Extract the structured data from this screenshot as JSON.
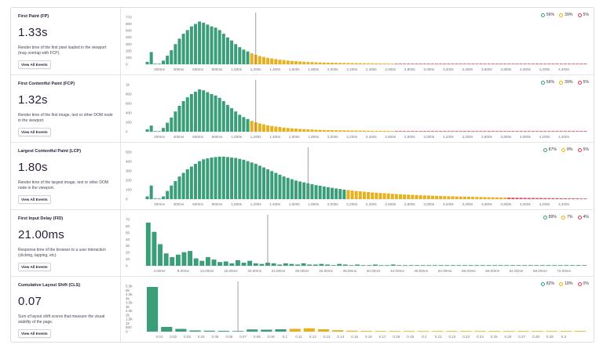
{
  "colors": {
    "good": "#3a9e79",
    "meh": "#e6b11c",
    "poor": "#dc4d5f",
    "marker": "#8b8592"
  },
  "metrics": [
    {
      "id": "fp",
      "title": "First Paint (FP)",
      "value": "1.33s",
      "description": "Render time of the first pixel loaded in the viewport (may overlap with FCP).",
      "button": "View All Events",
      "legend": {
        "good": "56%",
        "meh": "39%",
        "poor": "5%"
      },
      "chart_data": {
        "type": "bar",
        "y_ticks": [
          "0",
          "100",
          "200",
          "300",
          "400",
          "500",
          "600",
          "770"
        ],
        "x_ticks": [
          "200ms",
          "400ms",
          "600ms",
          "800ms",
          "1,000s",
          "1,200s",
          "1,400s",
          "1,600s",
          "1,800s",
          "2,000s",
          "2,200s",
          "2,400s",
          "2,600s",
          "2,800s",
          "3,000s",
          "3,200s",
          "3,400s",
          "3,600s",
          "3,800s",
          "4,000s",
          "4,200s",
          "4,400s"
        ],
        "ylim": [
          0,
          770
        ],
        "values": [
          40,
          200,
          10,
          5,
          60,
          140,
          230,
          330,
          420,
          500,
          560,
          620,
          660,
          700,
          680,
          650,
          620,
          600,
          560,
          500,
          440,
          390,
          330,
          280,
          240,
          210,
          180,
          155,
          135,
          120,
          105,
          95,
          85,
          75,
          68,
          60,
          55,
          50,
          45,
          42,
          38,
          35,
          32,
          30,
          28,
          27,
          25,
          24,
          23,
          22,
          21,
          20,
          19,
          18,
          17,
          16,
          15,
          14,
          13,
          13,
          12,
          11,
          10,
          10,
          9,
          9,
          8,
          8,
          8,
          7,
          7,
          7,
          6,
          6,
          6,
          5,
          5,
          5,
          5,
          4,
          4,
          4,
          4,
          4,
          3,
          3,
          3,
          3,
          3,
          3,
          2,
          2,
          2,
          2,
          2,
          2,
          2,
          2,
          2,
          2,
          2,
          2,
          2,
          2,
          1,
          1,
          1,
          1,
          1,
          1
        ],
        "thresholds": [
          26,
          62
        ],
        "marker_index": 27.5
      }
    },
    {
      "id": "fcp",
      "title": "First Contentful Paint (FCP)",
      "value": "1.32s",
      "description": "Render time of the first image, text or other DOM node in the viewport.",
      "button": "View All Events",
      "legend": {
        "good": "56%",
        "meh": "39%",
        "poor": "5%"
      },
      "chart_data": {
        "type": "bar",
        "y_ticks": [
          "0",
          "200",
          "400",
          "600",
          "800",
          "1k"
        ],
        "x_ticks": [
          "200ms",
          "400ms",
          "600ms",
          "800ms",
          "1,000s",
          "1,200s",
          "1,400s",
          "1,600s",
          "1,800s",
          "2,000s",
          "2,200s",
          "2,400s",
          "2,600s",
          "2,800s",
          "3,000s",
          "3,200s",
          "3,400s",
          "3,600s",
          "3,800s",
          "4,000s",
          "4,200s",
          "4,400s"
        ],
        "ylim": [
          0,
          1000
        ],
        "values": [
          50,
          130,
          10,
          5,
          80,
          190,
          300,
          430,
          550,
          650,
          730,
          800,
          850,
          900,
          880,
          840,
          800,
          770,
          720,
          650,
          570,
          500,
          430,
          360,
          310,
          270,
          230,
          200,
          175,
          155,
          135,
          122,
          110,
          98,
          88,
          78,
          71,
          65,
          58,
          54,
          49,
          45,
          41,
          39,
          36,
          34,
          32,
          31,
          29,
          28,
          27,
          26,
          24,
          23,
          22,
          21,
          19,
          18,
          17,
          17,
          16,
          14,
          13,
          13,
          12,
          12,
          10,
          10,
          10,
          9,
          9,
          9,
          8,
          8,
          8,
          6,
          6,
          6,
          6,
          5,
          5,
          5,
          5,
          5,
          4,
          4,
          4,
          4,
          4,
          4,
          3,
          3,
          3,
          3,
          3,
          3,
          3,
          3,
          3,
          3,
          3,
          3,
          3,
          3,
          2,
          2,
          2,
          2,
          2,
          2
        ],
        "thresholds": [
          26,
          62
        ],
        "marker_index": 27.5
      }
    },
    {
      "id": "lcp",
      "title": "Largest Contentful Paint (LCP)",
      "value": "1.80s",
      "description": "Render time of the largest image, text or other DOM node in the viewport.",
      "button": "View All Events",
      "legend": {
        "good": "87%",
        "meh": "8%",
        "poor": "5%"
      },
      "chart_data": {
        "type": "bar",
        "y_ticks": [
          "0",
          "100",
          "200",
          "300",
          "400",
          "500"
        ],
        "x_ticks": [
          "200ms",
          "400ms",
          "600ms",
          "800ms",
          "1,000s",
          "1,200s",
          "1,400s",
          "1,600s",
          "1,800s",
          "2,000s",
          "2,200s",
          "2,400s",
          "2,600s",
          "2,800s",
          "3,000s",
          "3,200s",
          "3,400s",
          "3,600s",
          "3,800s",
          "4,000s",
          "4,200s",
          "4,400s"
        ],
        "ylim": [
          0,
          520
        ],
        "values": [
          30,
          150,
          5,
          3,
          30,
          90,
          150,
          200,
          250,
          290,
          330,
          360,
          390,
          420,
          440,
          450,
          460,
          465,
          470,
          470,
          465,
          460,
          455,
          445,
          435,
          420,
          405,
          390,
          370,
          350,
          330,
          310,
          290,
          270,
          250,
          235,
          220,
          205,
          195,
          185,
          175,
          165,
          155,
          148,
          140,
          132,
          125,
          118,
          112,
          105,
          100,
          95,
          90,
          86,
          82,
          78,
          74,
          71,
          68,
          65,
          62,
          59,
          56,
          53,
          51,
          49,
          47,
          45,
          43,
          41,
          40,
          38,
          36,
          35,
          33,
          32,
          31,
          29,
          28,
          27,
          26,
          25,
          24,
          23,
          22,
          21,
          20,
          19,
          18,
          18,
          17,
          16,
          15,
          15,
          14,
          13,
          13,
          12,
          12,
          11,
          11,
          10,
          10,
          9,
          9,
          8,
          8,
          8,
          7,
          7
        ],
        "thresholds": [
          50,
          90
        ],
        "marker_index": 40.5
      }
    },
    {
      "id": "fid",
      "title": "First Input Delay (FID)",
      "value": "21.00ms",
      "description": "Response time of the browser to a user interaction (clicking, tapping, etc).",
      "button": "View All Events",
      "legend": {
        "good": "89%",
        "meh": "7%",
        "poor": "4%"
      },
      "chart_data": {
        "type": "bar",
        "y_ticks": [
          "0",
          "10",
          "20",
          "30",
          "40",
          "50",
          "60",
          "70"
        ],
        "x_ticks": [
          "4.00ms",
          "8.00ms",
          "12.00ms",
          "16.00ms",
          "20.00ms",
          "24.00ms",
          "28.00ms",
          "32.00ms",
          "36.00ms",
          "40.00ms",
          "44.00ms",
          "48.00ms",
          "52.00ms",
          "56.00ms",
          "60.00ms",
          "64.00ms",
          "68.00ms",
          "72.00ms"
        ],
        "ylim": [
          0,
          75
        ],
        "values": [
          70,
          55,
          35,
          20,
          14,
          18,
          22,
          24,
          12,
          8,
          14,
          10,
          6,
          7,
          4,
          9,
          5,
          8,
          4,
          3,
          5,
          4,
          2,
          4,
          3,
          2,
          4,
          2,
          2,
          3,
          2,
          1,
          3,
          2,
          1,
          2,
          1,
          1,
          2,
          1,
          1,
          2,
          1,
          1,
          1,
          0.5,
          1,
          0.5,
          1,
          0.5,
          1,
          0.5,
          1,
          0.5,
          0.5,
          1,
          0.5,
          0.5,
          0.5,
          0.5,
          0.5,
          0.5,
          0.5,
          0.5,
          0.5,
          0.5,
          0.5,
          0.5,
          0.5,
          0.5,
          0.5,
          0.5,
          0.5,
          0.5
        ],
        "thresholds": [
          200,
          200
        ],
        "marker_index": 20.5
      }
    },
    {
      "id": "cls",
      "title": "Cumulative Layout Shift (CLS)",
      "value": "0.07",
      "description": "Sum of layout shift scores that measure the visual stability of the page.",
      "button": "View All Events",
      "legend": {
        "good": "82%",
        "meh": "18%",
        "poor": "0%"
      },
      "chart_data": {
        "type": "bar",
        "y_ticks": [
          "0",
          "500",
          "1k",
          "1.5k",
          "2k",
          "2.5k",
          "3k",
          "3.5k",
          "4k",
          "4.5k",
          "5k",
          "5.5k"
        ],
        "x_ticks": [
          "0.01",
          "0.02",
          "0.03",
          "0.04",
          "0.05",
          "0.06",
          "0.07",
          "0.08",
          "0.09",
          "0.1",
          "0.11",
          "0.12",
          "0.13",
          "0.14",
          "0.15",
          "0.16",
          "0.17",
          "0.18",
          "0.19",
          "0.2",
          "0.21",
          "0.22",
          "0.23",
          "0.24",
          "0.25",
          "0.26",
          "0.27",
          "0.28",
          "0.29",
          "0.3"
        ],
        "ylim": [
          0,
          5800
        ],
        "values": [
          5700,
          600,
          350,
          150,
          120,
          100,
          80,
          280,
          250,
          300,
          350,
          420,
          300,
          180,
          120,
          90,
          60,
          40,
          30,
          25,
          20,
          15,
          12,
          10,
          8,
          8,
          6,
          6,
          5,
          5,
          4
        ],
        "thresholds": [
          10,
          200
        ],
        "marker_index": 6.5
      }
    }
  ]
}
